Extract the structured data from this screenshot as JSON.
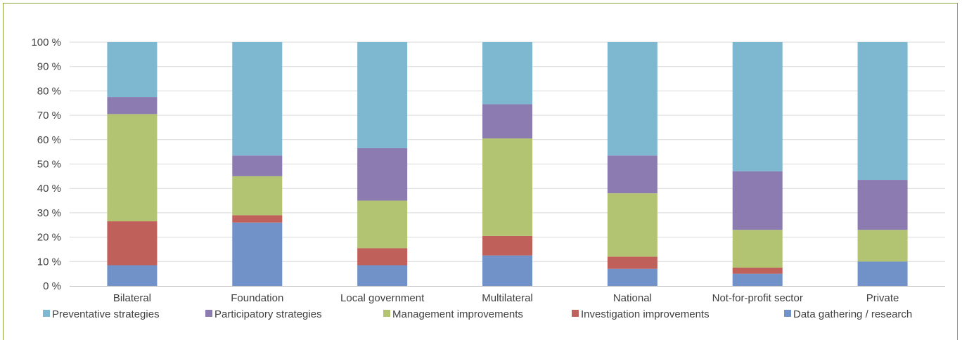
{
  "chart_data": {
    "type": "bar",
    "stacked": true,
    "title": "",
    "xlabel": "",
    "ylabel": "",
    "ylim": [
      0,
      100
    ],
    "yticks": [
      "0 %",
      "10 %",
      "20 %",
      "30 %",
      "40 %",
      "50 %",
      "60 %",
      "70 %",
      "80 %",
      "90 %",
      "100 %"
    ],
    "grid": true,
    "legend_position": "bottom",
    "categories": [
      "Bilateral",
      "Foundation",
      "Local government",
      "Multilateral",
      "National",
      "Not-for-profit sector",
      "Private"
    ],
    "series": [
      {
        "name": "Data gathering / research",
        "color": "#7092c8",
        "values": [
          8.5,
          26,
          8.5,
          12.5,
          7,
          5,
          10
        ]
      },
      {
        "name": "Investigation improvements",
        "color": "#c0605a",
        "values": [
          18,
          3,
          7,
          8,
          5,
          2.5,
          0
        ]
      },
      {
        "name": "Management improvements",
        "color": "#b2c472",
        "values": [
          44,
          16,
          19.5,
          40,
          26,
          15.5,
          13
        ]
      },
      {
        "name": "Participatory strategies",
        "color": "#8b7bb0",
        "values": [
          7,
          8.5,
          21.5,
          14,
          15.5,
          24,
          20.5
        ]
      },
      {
        "name": "Preventative strategies",
        "color": "#7db8d0",
        "values": [
          22.5,
          46.5,
          43.5,
          25.5,
          46.5,
          53,
          56.5
        ]
      }
    ],
    "legend_order": [
      "Preventative strategies",
      "Participatory strategies",
      "Management improvements",
      "Investigation improvements",
      "Data gathering / research"
    ]
  }
}
